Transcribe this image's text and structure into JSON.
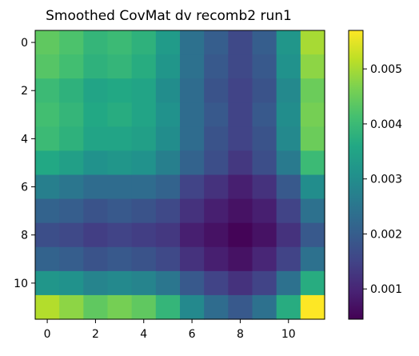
{
  "chart_data": {
    "type": "heatmap",
    "title": "Smoothed CovMat dv recomb2 run1",
    "xlabel": "",
    "ylabel": "",
    "colormap": "viridis",
    "rows": 12,
    "cols": 12,
    "x_ticks": [
      0,
      2,
      4,
      6,
      8,
      10
    ],
    "y_ticks": [
      0,
      2,
      4,
      6,
      8,
      10
    ],
    "xlim": [
      -0.5,
      11.5
    ],
    "ylim": [
      11.5,
      -0.5
    ],
    "color_range": [
      0.00045,
      0.0057
    ],
    "colorbar_ticks": [
      0.001,
      0.002,
      0.003,
      0.004,
      0.005
    ],
    "colorbar_tick_labels": [
      "0.001",
      "0.002",
      "0.003",
      "0.004",
      "0.005"
    ],
    "values": [
      [
        0.0044,
        0.0042,
        0.0039,
        0.004,
        0.0038,
        0.0033,
        0.0024,
        0.002,
        0.0016,
        0.002,
        0.0032,
        0.005
      ],
      [
        0.0043,
        0.0041,
        0.0038,
        0.0039,
        0.0037,
        0.0032,
        0.0024,
        0.0019,
        0.0016,
        0.0019,
        0.0031,
        0.0048
      ],
      [
        0.004,
        0.0038,
        0.0035,
        0.0036,
        0.0035,
        0.003,
        0.0023,
        0.0018,
        0.0015,
        0.0018,
        0.0029,
        0.0045
      ],
      [
        0.0041,
        0.0039,
        0.0036,
        0.0037,
        0.0035,
        0.0031,
        0.0023,
        0.0019,
        0.0015,
        0.0019,
        0.003,
        0.0046
      ],
      [
        0.004,
        0.0038,
        0.0035,
        0.0035,
        0.0034,
        0.003,
        0.0023,
        0.0018,
        0.0015,
        0.0018,
        0.0029,
        0.0045
      ],
      [
        0.0036,
        0.0034,
        0.0031,
        0.0032,
        0.0031,
        0.0027,
        0.0021,
        0.0017,
        0.0013,
        0.0017,
        0.0026,
        0.004
      ],
      [
        0.0027,
        0.0025,
        0.0023,
        0.0023,
        0.0023,
        0.0021,
        0.0015,
        0.0012,
        0.0009,
        0.0012,
        0.0019,
        0.003
      ],
      [
        0.0021,
        0.002,
        0.0018,
        0.0019,
        0.0018,
        0.0016,
        0.0012,
        0.0009,
        0.0007,
        0.0009,
        0.0015,
        0.0024
      ],
      [
        0.0017,
        0.0016,
        0.0014,
        0.0015,
        0.0014,
        0.0013,
        0.0009,
        0.0007,
        0.0005,
        0.0007,
        0.0012,
        0.0019
      ],
      [
        0.0021,
        0.002,
        0.0018,
        0.0019,
        0.0018,
        0.0016,
        0.0012,
        0.0009,
        0.0007,
        0.001,
        0.0015,
        0.0024
      ],
      [
        0.0032,
        0.0031,
        0.0028,
        0.0029,
        0.0028,
        0.0025,
        0.0019,
        0.0015,
        0.0012,
        0.0015,
        0.0024,
        0.0037
      ],
      [
        0.0051,
        0.0048,
        0.0044,
        0.0046,
        0.0044,
        0.0039,
        0.0029,
        0.0023,
        0.0019,
        0.0024,
        0.0037,
        0.0057
      ]
    ]
  }
}
